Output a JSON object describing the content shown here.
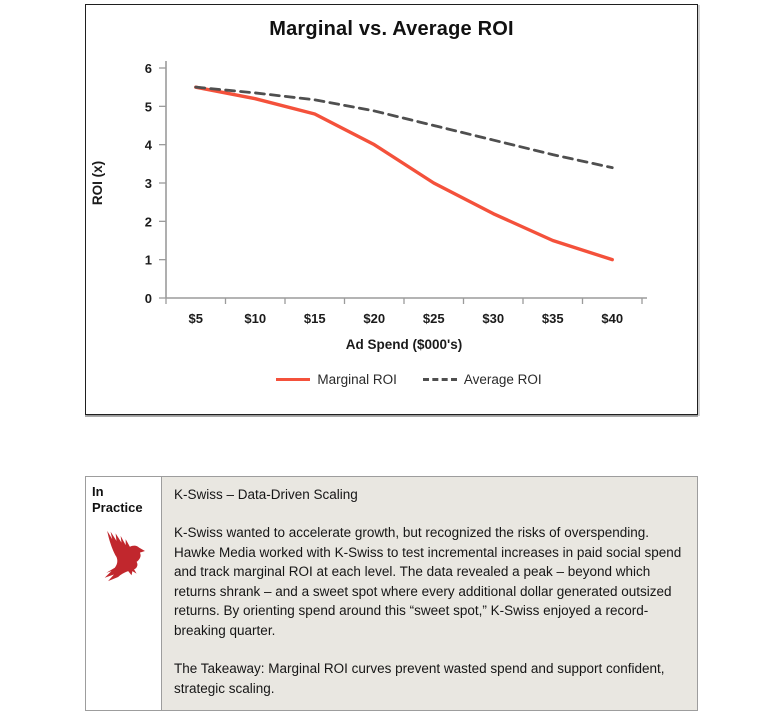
{
  "chart": {
    "title": "Marginal vs. Average ROI"
  },
  "chart_data": {
    "type": "line",
    "title": "Marginal vs. Average ROI",
    "xlabel": "Ad Spend ($000's)",
    "ylabel": "ROI (x)",
    "categories": [
      "$5",
      "$10",
      "$15",
      "$20",
      "$25",
      "$30",
      "$35",
      "$40"
    ],
    "y_ticks": [
      0,
      1,
      2,
      3,
      4,
      5,
      6
    ],
    "ylim": [
      0,
      6
    ],
    "grid": false,
    "legend_position": "bottom",
    "series": [
      {
        "name": "Marginal ROI",
        "color": "#f4513b",
        "line_style": "solid",
        "values": [
          5.5,
          5.2,
          4.8,
          4.0,
          3.0,
          2.2,
          1.5,
          1.0
        ]
      },
      {
        "name": "Average ROI",
        "color": "#4f4f4f",
        "line_style": "dashed",
        "values": [
          5.5,
          5.35,
          5.17,
          4.88,
          4.5,
          4.12,
          3.74,
          3.4
        ]
      }
    ]
  },
  "colors": {
    "marginal_red": "#f4513b",
    "average_gray": "#4f4f4f",
    "axis_gray": "#9b9b9b",
    "hawk_red": "#c1272d",
    "panel_bg": "#e9e7e1"
  },
  "practice": {
    "label": "In Practice",
    "icon": "hawk-icon",
    "heading": "K-Swiss – Data-Driven Scaling",
    "body": "K-Swiss wanted to accelerate growth, but recognized the risks of overspending. Hawke Media worked with K-Swiss to test incremental increases in paid social spend and track marginal ROI at each level. The data revealed a peak – beyond which returns shrank – and a sweet spot where every additional dollar generated outsized returns. By orienting spend around this “sweet spot,” K-Swiss enjoyed a record-breaking quarter.",
    "takeaway": "The Takeaway: Marginal ROI curves prevent wasted spend and support confident, strategic scaling."
  }
}
